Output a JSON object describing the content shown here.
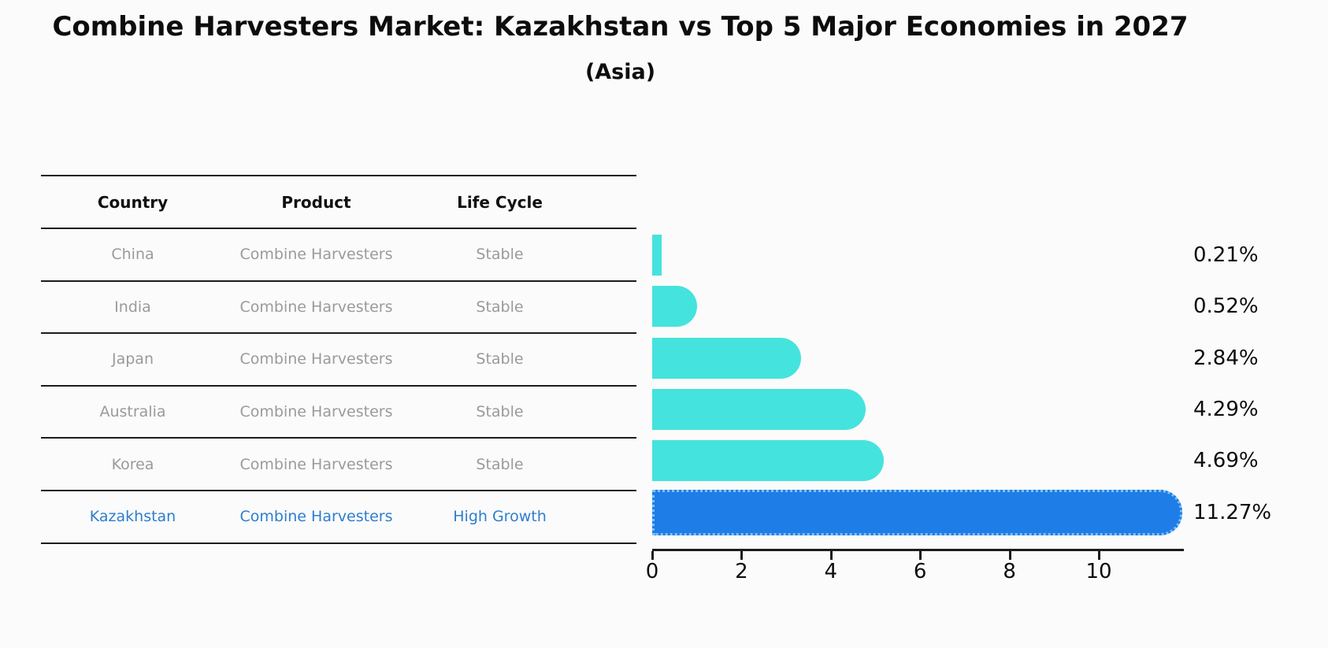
{
  "title": "Combine Harvesters Market: Kazakhstan vs Top 5 Major Economies in 2027",
  "subtitle": "(Asia)",
  "table": {
    "headers": [
      "Country",
      "Product",
      "Life Cycle"
    ],
    "rows": [
      {
        "country": "China",
        "product": "Combine Harvesters",
        "life_cycle": "Stable",
        "highlight": false
      },
      {
        "country": "India",
        "product": "Combine Harvesters",
        "life_cycle": "Stable",
        "highlight": false
      },
      {
        "country": "Japan",
        "product": "Combine Harvesters",
        "life_cycle": "Stable",
        "highlight": false
      },
      {
        "country": "Australia",
        "product": "Combine Harvesters",
        "life_cycle": "Stable",
        "highlight": false
      },
      {
        "country": "Korea",
        "product": "Combine Harvesters",
        "life_cycle": "Stable",
        "highlight": false
      },
      {
        "country": "Kazakhstan",
        "product": "Combine Harvesters",
        "life_cycle": "High Growth",
        "highlight": true
      }
    ]
  },
  "chart_data": {
    "type": "bar",
    "orientation": "horizontal",
    "categories": [
      "China",
      "India",
      "Japan",
      "Australia",
      "Korea",
      "Kazakhstan"
    ],
    "values": [
      0.21,
      0.52,
      2.84,
      4.29,
      4.69,
      11.27
    ],
    "value_labels": [
      "0.21%",
      "0.52%",
      "2.84%",
      "4.29%",
      "4.69%",
      "11.27%"
    ],
    "x_ticks": [
      0,
      2,
      4,
      6,
      8,
      10
    ],
    "xlim": [
      0,
      11.9
    ],
    "grid": false,
    "legend": false,
    "bar_color": "#45e3dd",
    "highlight_index": 5,
    "highlight_color": "#1f7de8",
    "highlight_border_color": "#7ec2f5",
    "title": "Combine Harvesters Market: Kazakhstan vs Top 5 Major Economies in 2027",
    "subtitle": "(Asia)"
  },
  "colors": {
    "row_text": "#9a9a9a",
    "header_text": "#111111",
    "highlight_text": "#2d7ecd",
    "axis": "#1c1c1c"
  }
}
